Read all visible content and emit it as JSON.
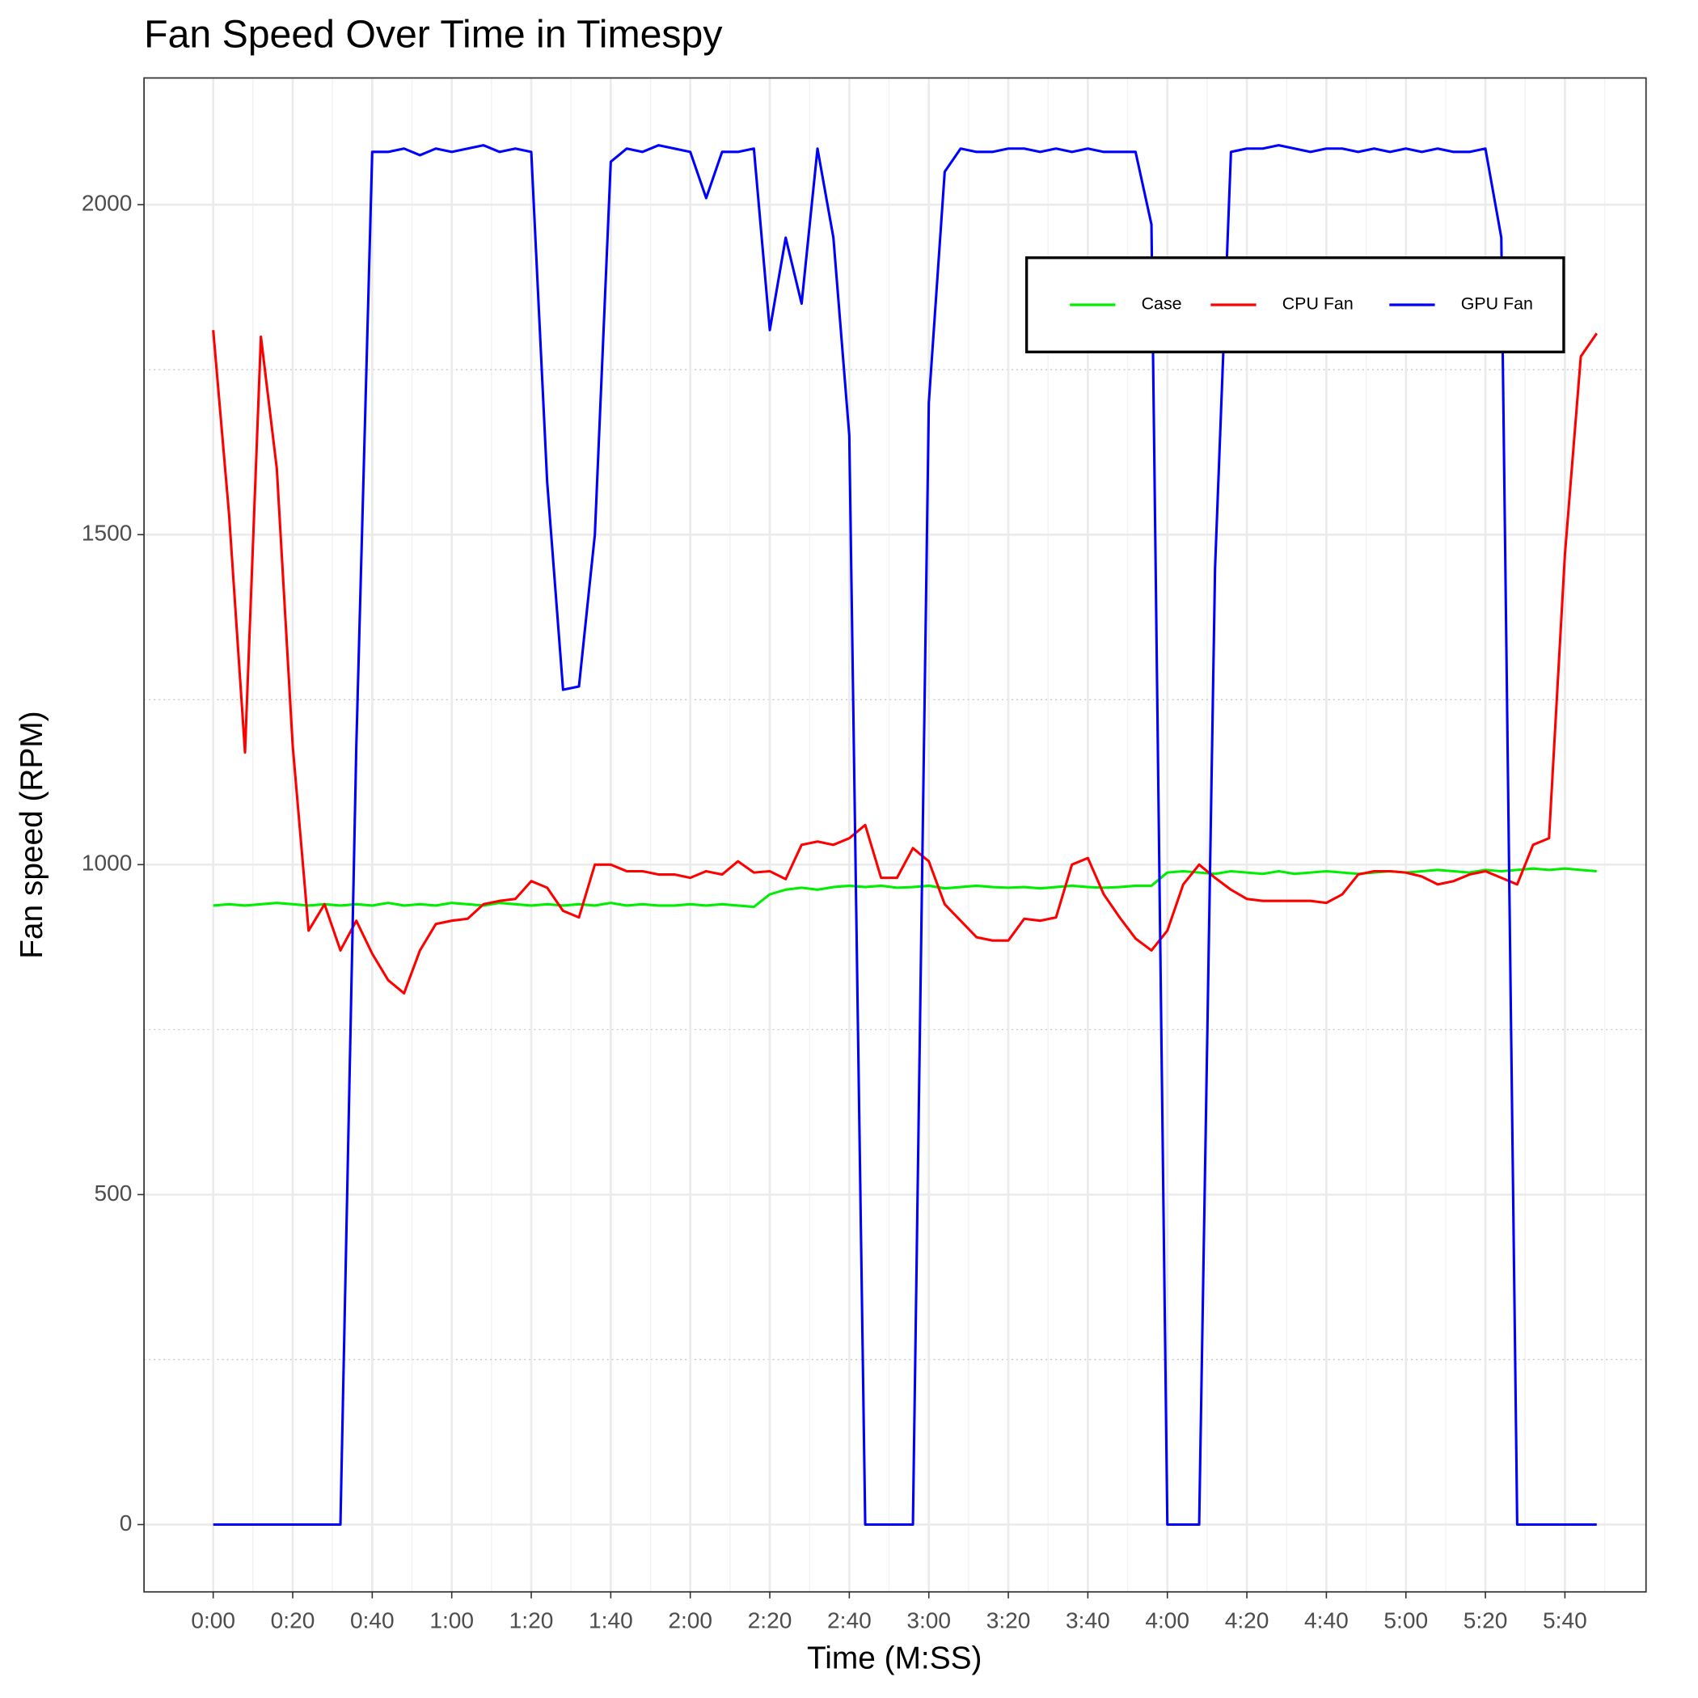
{
  "chart_data": {
    "type": "line",
    "title": "Fan Speed Over Time in Timespy",
    "xlabel": "Time (M:SS)",
    "ylabel": "Fan speed (RPM)",
    "x": [
      0,
      4,
      8,
      12,
      16,
      20,
      24,
      28,
      32,
      36,
      40,
      44,
      48,
      52,
      56,
      60,
      64,
      68,
      72,
      76,
      80,
      84,
      88,
      92,
      96,
      100,
      104,
      108,
      112,
      116,
      120,
      124,
      128,
      132,
      136,
      140,
      144,
      148,
      152,
      156,
      160,
      164,
      168,
      172,
      176,
      180,
      184,
      188,
      192,
      196,
      200,
      204,
      208,
      212,
      216,
      220,
      224,
      228,
      232,
      236,
      240,
      244,
      248,
      252,
      256,
      260,
      264,
      268,
      272,
      276,
      280,
      284,
      288,
      292,
      296,
      300,
      304,
      308,
      312,
      316,
      320,
      324,
      328,
      332,
      336,
      340,
      344,
      348
    ],
    "series": [
      {
        "name": "Case",
        "color": "#00ee00",
        "values": [
          938,
          940,
          938,
          940,
          942,
          940,
          938,
          940,
          938,
          940,
          938,
          942,
          938,
          940,
          938,
          942,
          940,
          938,
          942,
          940,
          938,
          940,
          938,
          940,
          938,
          942,
          938,
          940,
          938,
          938,
          940,
          938,
          940,
          938,
          936,
          955,
          962,
          965,
          962,
          966,
          968,
          966,
          968,
          965,
          966,
          968,
          964,
          966,
          968,
          966,
          965,
          966,
          964,
          966,
          968,
          966,
          965,
          966,
          968,
          968,
          988,
          990,
          988,
          986,
          990,
          988,
          986,
          990,
          986,
          988,
          990,
          988,
          986,
          988,
          990,
          988,
          990,
          992,
          990,
          988,
          992,
          990,
          992,
          994,
          992,
          994,
          992,
          990
        ]
      },
      {
        "name": "CPU Fan",
        "color": "#ff0000",
        "values": [
          1810,
          1530,
          1170,
          1800,
          1600,
          1180,
          900,
          940,
          870,
          915,
          865,
          825,
          805,
          870,
          910,
          915,
          918,
          940,
          945,
          948,
          975,
          965,
          930,
          920,
          1000,
          1000,
          990,
          990,
          985,
          985,
          980,
          990,
          985,
          1005,
          988,
          990,
          978,
          1030,
          1035,
          1030,
          1040,
          1060,
          980,
          980,
          1025,
          1005,
          940,
          915,
          890,
          885,
          885,
          918,
          915,
          920,
          1000,
          1010,
          955,
          920,
          888,
          870,
          900,
          970,
          1000,
          980,
          962,
          948,
          945,
          945,
          945,
          945,
          942,
          955,
          985,
          990,
          990,
          988,
          982,
          970,
          975,
          985,
          990,
          980,
          970,
          1030,
          1040,
          1470,
          1770,
          1805
        ]
      },
      {
        "name": "GPU Fan",
        "color": "#0000ff",
        "values": [
          0,
          0,
          0,
          0,
          0,
          0,
          0,
          0,
          0,
          1180,
          2080,
          2080,
          2085,
          2075,
          2085,
          2080,
          2085,
          2090,
          2080,
          2085,
          2080,
          1580,
          1265,
          1270,
          1500,
          2065,
          2085,
          2080,
          2090,
          2085,
          2080,
          2010,
          2080,
          2080,
          2085,
          1810,
          1950,
          1850,
          2085,
          1950,
          1650,
          0,
          0,
          0,
          0,
          1700,
          2050,
          2085,
          2080,
          2080,
          2085,
          2085,
          2080,
          2085,
          2080,
          2085,
          2080,
          2080,
          2080,
          1970,
          0,
          0,
          0,
          1450,
          2080,
          2085,
          2085,
          2090,
          2085,
          2080,
          2085,
          2085,
          2080,
          2085,
          2080,
          2085,
          2080,
          2085,
          2080,
          2080,
          2085,
          1950,
          0,
          0,
          0,
          0,
          0,
          0
        ]
      }
    ],
    "xlim": [
      -17.4,
      360.4
    ],
    "ylim": [
      -102,
      2192
    ],
    "xticks": [
      {
        "value": 0,
        "label": "0:00"
      },
      {
        "value": 20,
        "label": "0:20"
      },
      {
        "value": 40,
        "label": "0:40"
      },
      {
        "value": 60,
        "label": "1:00"
      },
      {
        "value": 80,
        "label": "1:20"
      },
      {
        "value": 100,
        "label": "1:40"
      },
      {
        "value": 120,
        "label": "2:00"
      },
      {
        "value": 140,
        "label": "2:20"
      },
      {
        "value": 160,
        "label": "2:40"
      },
      {
        "value": 180,
        "label": "3:00"
      },
      {
        "value": 200,
        "label": "3:20"
      },
      {
        "value": 220,
        "label": "3:40"
      },
      {
        "value": 240,
        "label": "4:00"
      },
      {
        "value": 260,
        "label": "4:20"
      },
      {
        "value": 280,
        "label": "4:40"
      },
      {
        "value": 300,
        "label": "5:00"
      },
      {
        "value": 320,
        "label": "5:20"
      },
      {
        "value": 340,
        "label": "5:40"
      }
    ],
    "xticks_minor": [
      10,
      30,
      50,
      70,
      90,
      110,
      130,
      150,
      170,
      190,
      210,
      230,
      250,
      270,
      290,
      310,
      330,
      350
    ],
    "yticks": [
      0,
      500,
      1000,
      1500,
      2000
    ],
    "yticks_minor": [
      250,
      750,
      1250,
      1750
    ],
    "grid": true,
    "legend": "top-right"
  }
}
